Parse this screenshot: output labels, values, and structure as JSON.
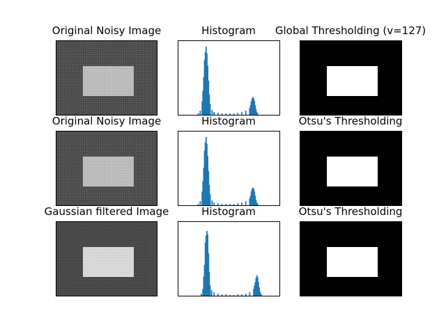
{
  "panels": [
    {
      "row": 0,
      "col": 0,
      "title": "Original Noisy Image",
      "kind": "image"
    },
    {
      "row": 0,
      "col": 1,
      "title": "Histogram",
      "kind": "histogram"
    },
    {
      "row": 0,
      "col": 2,
      "title": "Global Thresholding (v=127)",
      "kind": "binary"
    },
    {
      "row": 1,
      "col": 0,
      "title": "Original Noisy Image",
      "kind": "image"
    },
    {
      "row": 1,
      "col": 1,
      "title": "Histogram",
      "kind": "histogram"
    },
    {
      "row": 1,
      "col": 2,
      "title": "Otsu's Thresholding",
      "kind": "binary"
    },
    {
      "row": 2,
      "col": 0,
      "title": "Gaussian filtered Image",
      "kind": "image"
    },
    {
      "row": 2,
      "col": 1,
      "title": "Histogram",
      "kind": "histogram"
    },
    {
      "row": 2,
      "col": 2,
      "title": "Otsu's Thresholding",
      "kind": "binary"
    }
  ],
  "colors": {
    "bar": "#1f77b4",
    "noisy_background": "#4c4c4c",
    "noisy_rect": "#bdbdbd",
    "filtered_rect": "#d9d9d9",
    "binary_background": "#000000",
    "binary_foreground": "#ffffff"
  },
  "chart_data": [
    {
      "type": "bar",
      "row": 0,
      "title": "Histogram",
      "x": [
        45,
        50,
        55,
        60,
        62,
        64,
        66,
        68,
        70,
        72,
        74,
        76,
        78,
        80,
        85,
        90,
        100,
        110,
        120,
        130,
        140,
        150,
        160,
        170,
        180,
        182,
        184,
        186,
        188,
        190,
        192,
        194,
        196,
        198,
        200,
        205
      ],
      "values": [
        0.0,
        0.02,
        0.06,
        0.2,
        0.35,
        0.55,
        0.8,
        0.92,
        1.0,
        0.9,
        0.72,
        0.5,
        0.3,
        0.16,
        0.07,
        0.04,
        0.03,
        0.02,
        0.02,
        0.02,
        0.02,
        0.03,
        0.04,
        0.06,
        0.1,
        0.14,
        0.2,
        0.24,
        0.26,
        0.24,
        0.2,
        0.14,
        0.08,
        0.04,
        0.02,
        0.0
      ],
      "xlim": [
        0,
        255
      ],
      "ylim": [
        0,
        1.08
      ]
    },
    {
      "type": "bar",
      "row": 1,
      "title": "Histogram",
      "x": [
        45,
        50,
        55,
        60,
        62,
        64,
        66,
        68,
        70,
        72,
        74,
        76,
        78,
        80,
        85,
        90,
        100,
        110,
        120,
        130,
        140,
        150,
        160,
        170,
        180,
        182,
        184,
        186,
        188,
        190,
        192,
        194,
        196,
        198,
        200,
        205
      ],
      "values": [
        0.0,
        0.02,
        0.06,
        0.2,
        0.35,
        0.55,
        0.8,
        0.92,
        1.0,
        0.9,
        0.72,
        0.5,
        0.3,
        0.16,
        0.07,
        0.04,
        0.03,
        0.02,
        0.02,
        0.02,
        0.02,
        0.03,
        0.04,
        0.06,
        0.1,
        0.14,
        0.2,
        0.24,
        0.26,
        0.24,
        0.2,
        0.14,
        0.08,
        0.04,
        0.02,
        0.0
      ],
      "xlim": [
        0,
        255
      ],
      "ylim": [
        0,
        1.08
      ]
    },
    {
      "type": "bar",
      "row": 2,
      "title": "Histogram",
      "x": [
        58,
        62,
        64,
        66,
        68,
        70,
        72,
        74,
        76,
        78,
        80,
        84,
        90,
        100,
        110,
        120,
        130,
        140,
        150,
        160,
        170,
        180,
        190,
        192,
        194,
        196,
        198,
        200,
        202,
        204,
        206,
        208,
        210
      ],
      "values": [
        0.03,
        0.1,
        0.28,
        0.45,
        0.78,
        0.88,
        0.95,
        0.9,
        0.62,
        0.35,
        0.15,
        0.08,
        0.05,
        0.03,
        0.02,
        0.02,
        0.01,
        0.01,
        0.02,
        0.02,
        0.03,
        0.05,
        0.1,
        0.15,
        0.2,
        0.26,
        0.3,
        0.27,
        0.2,
        0.12,
        0.06,
        0.03,
        0.01
      ],
      "xlim": [
        0,
        255
      ],
      "ylim": [
        0,
        1.08
      ]
    }
  ]
}
